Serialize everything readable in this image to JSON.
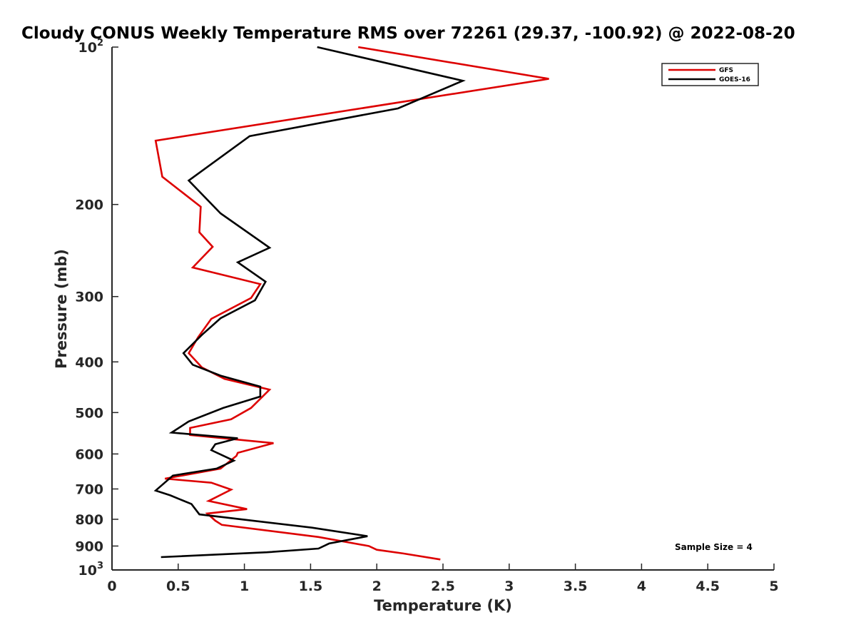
{
  "chart_data": {
    "type": "line",
    "title": "Cloudy CONUS Weekly Temperature RMS over 72261 (29.37, -100.92) @ 2022-08-20",
    "xlabel": "Temperature (K)",
    "ylabel": "Pressure (mb)",
    "xlim": [
      0,
      5
    ],
    "ylim": [
      100,
      1000
    ],
    "y_scale": "log",
    "y_reversed": true,
    "grid": false,
    "legend_position": "top-right",
    "x_ticks": [
      0,
      0.5,
      1,
      1.5,
      2,
      2.5,
      3,
      3.5,
      4,
      4.5,
      5
    ],
    "x_tick_labels": [
      "0",
      "0.5",
      "1",
      "1.5",
      "2",
      "2.5",
      "3",
      "3.5",
      "4",
      "4.5",
      "5"
    ],
    "y_ticks": [
      {
        "value": 100,
        "base": "10",
        "exp": "2"
      },
      {
        "value": 200,
        "label": "200"
      },
      {
        "value": 300,
        "label": "300"
      },
      {
        "value": 400,
        "label": "400"
      },
      {
        "value": 500,
        "label": "500"
      },
      {
        "value": 600,
        "label": "600"
      },
      {
        "value": 700,
        "label": "700"
      },
      {
        "value": 800,
        "label": "800"
      },
      {
        "value": 900,
        "label": "900"
      },
      {
        "value": 1000,
        "base": "10",
        "exp": "3"
      }
    ],
    "annotation": "Sample Size = 4",
    "series": [
      {
        "name": "GFS",
        "color": "#dd0000",
        "points": [
          [
            1.86,
            100
          ],
          [
            3.3,
            115
          ],
          [
            0.33,
            151
          ],
          [
            0.38,
            177
          ],
          [
            0.67,
            202
          ],
          [
            0.66,
            226
          ],
          [
            0.76,
            241
          ],
          [
            0.61,
            264
          ],
          [
            1.12,
            284
          ],
          [
            1.05,
            302
          ],
          [
            0.75,
            331
          ],
          [
            0.65,
            359
          ],
          [
            0.58,
            385
          ],
          [
            0.68,
            410
          ],
          [
            0.85,
            431
          ],
          [
            1.19,
            452
          ],
          [
            1.05,
            490
          ],
          [
            0.9,
            515
          ],
          [
            0.59,
            535
          ],
          [
            0.59,
            552
          ],
          [
            1.22,
            572
          ],
          [
            0.95,
            597
          ],
          [
            0.94,
            605
          ],
          [
            0.82,
            640
          ],
          [
            0.4,
            669
          ],
          [
            0.75,
            681
          ],
          [
            0.9,
            702
          ],
          [
            0.73,
            738
          ],
          [
            1.02,
            765
          ],
          [
            0.72,
            780
          ],
          [
            0.78,
            805
          ],
          [
            0.83,
            820
          ],
          [
            1.56,
            865
          ],
          [
            1.94,
            900
          ],
          [
            2.0,
            915
          ],
          [
            2.2,
            930
          ],
          [
            2.48,
            955
          ]
        ]
      },
      {
        "name": "GOES-16",
        "color": "#000000",
        "points": [
          [
            1.55,
            100
          ],
          [
            2.65,
            116
          ],
          [
            2.16,
            131
          ],
          [
            1.04,
            148
          ],
          [
            0.58,
            180
          ],
          [
            0.82,
            208
          ],
          [
            1.19,
            242
          ],
          [
            0.95,
            258
          ],
          [
            1.16,
            281
          ],
          [
            1.08,
            305
          ],
          [
            0.82,
            330
          ],
          [
            0.68,
            355
          ],
          [
            0.54,
            385
          ],
          [
            0.61,
            405
          ],
          [
            0.82,
            425
          ],
          [
            1.12,
            446
          ],
          [
            1.12,
            466
          ],
          [
            0.84,
            490
          ],
          [
            0.58,
            520
          ],
          [
            0.45,
            546
          ],
          [
            0.95,
            560
          ],
          [
            0.78,
            575
          ],
          [
            0.75,
            590
          ],
          [
            0.92,
            618
          ],
          [
            0.79,
            640
          ],
          [
            0.46,
            660
          ],
          [
            0.33,
            705
          ],
          [
            0.44,
            720
          ],
          [
            0.6,
            748
          ],
          [
            0.66,
            783
          ],
          [
            1.51,
            830
          ],
          [
            1.93,
            862
          ],
          [
            1.64,
            890
          ],
          [
            1.56,
            910
          ],
          [
            1.17,
            925
          ],
          [
            0.37,
            945
          ]
        ]
      }
    ]
  }
}
